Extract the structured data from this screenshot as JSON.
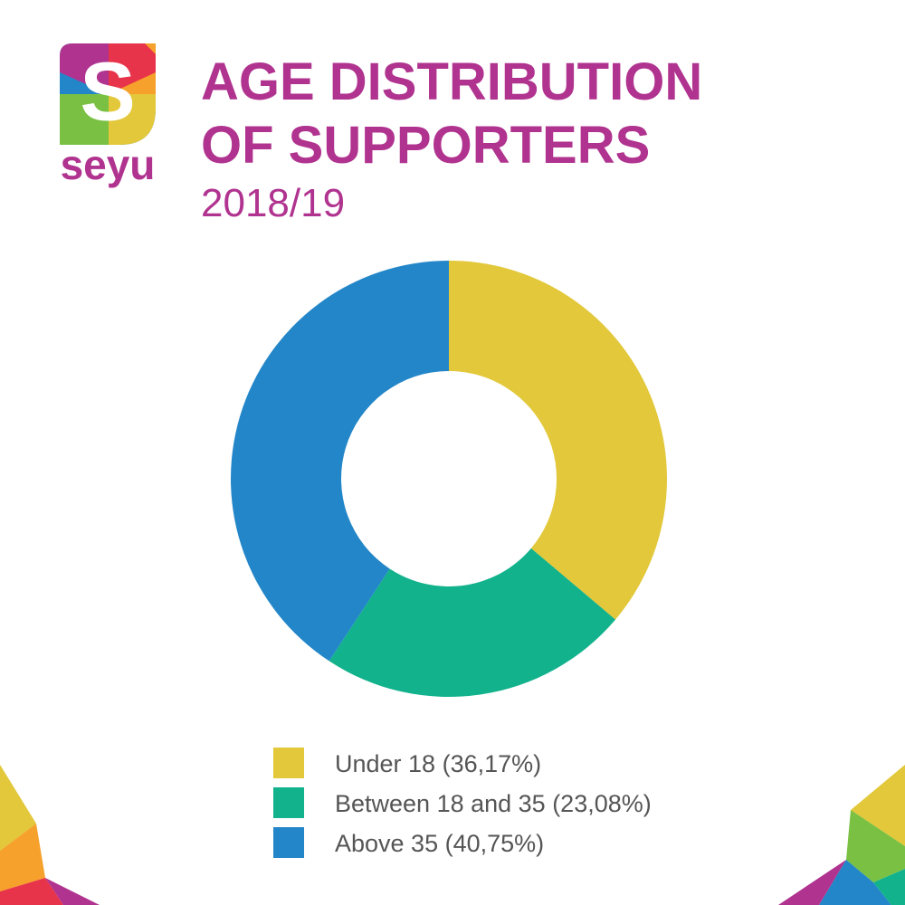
{
  "logo": {
    "letter": "S",
    "text": "seyu"
  },
  "chart_data": {
    "type": "donut",
    "title": "AGE DISTRIBUTION OF SUPPORTERS",
    "subtitle": "2018/19",
    "categories": [
      "Under 18 (36,17%)",
      "Between 18 and 35 (23,08%)",
      "Above 35 (40,75%)"
    ],
    "values": [
      36.17,
      23.08,
      40.75
    ],
    "colors": [
      "#e2c83a",
      "#12b28c",
      "#2386c8"
    ]
  }
}
